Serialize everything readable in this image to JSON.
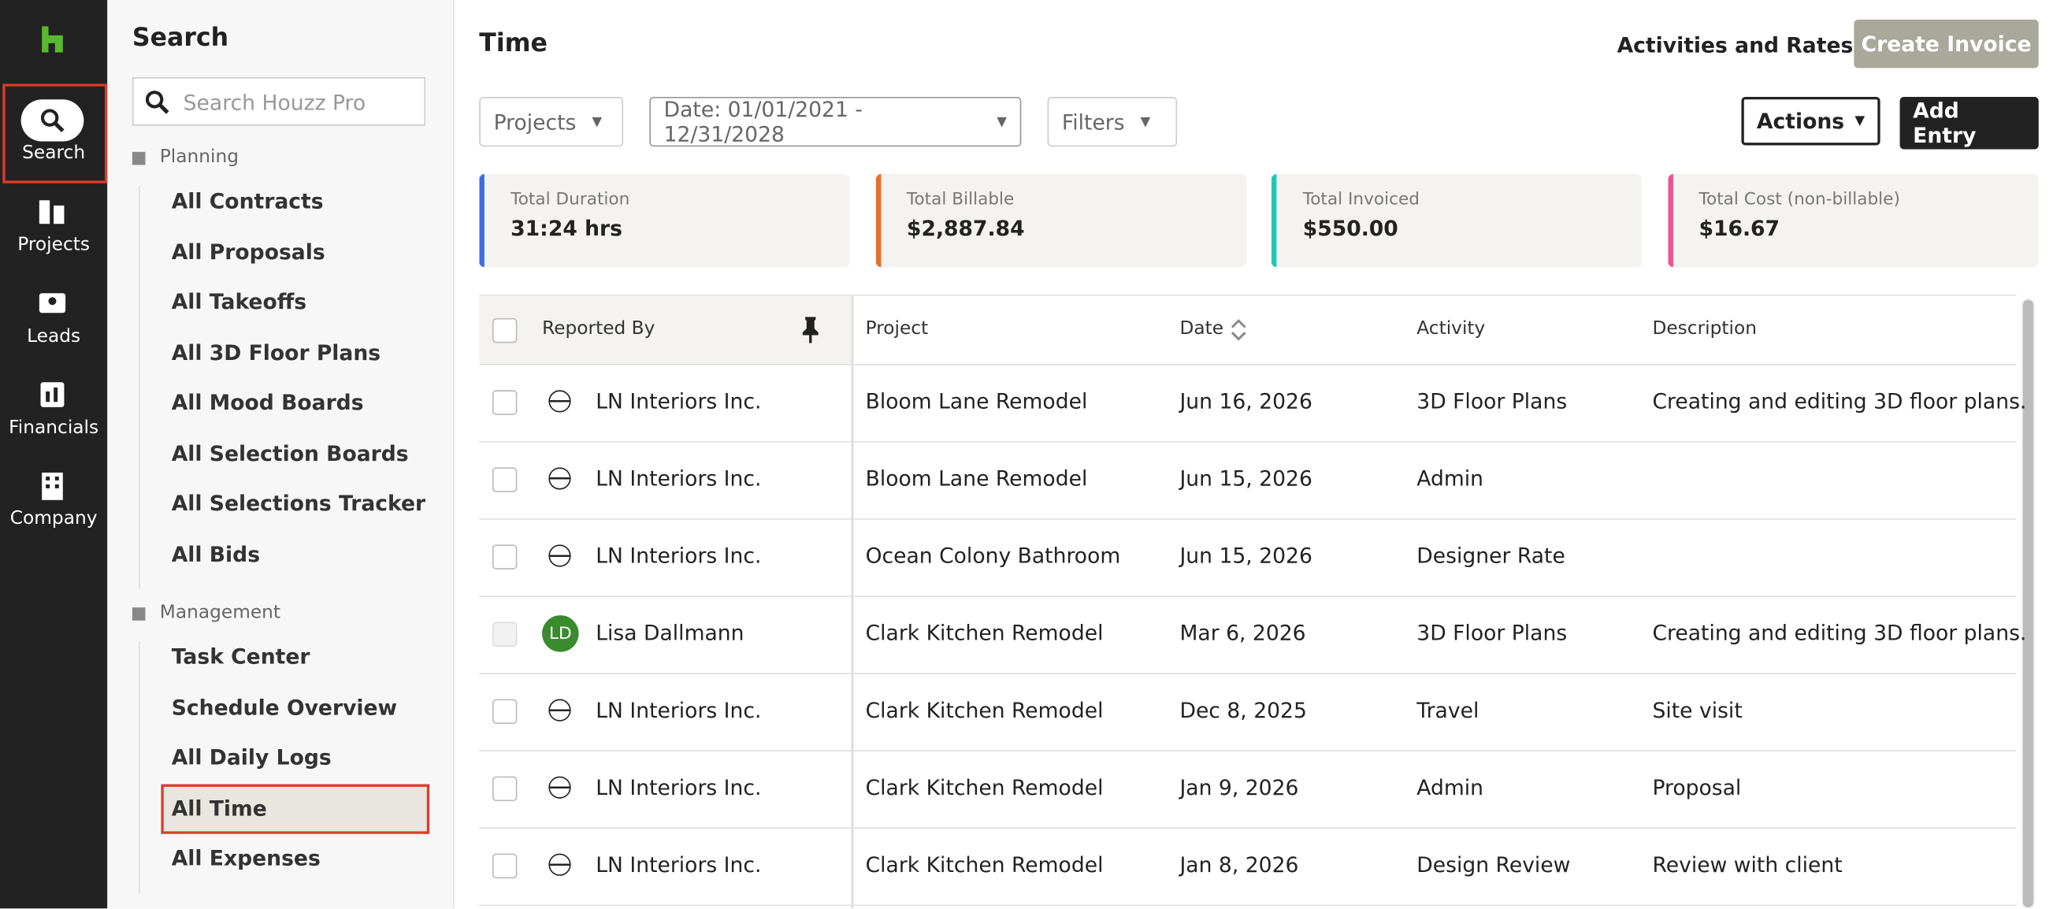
{
  "nav": {
    "items": [
      "Search",
      "Projects",
      "Leads",
      "Financials",
      "Company"
    ]
  },
  "panel": {
    "title": "Search",
    "search_placeholder": "Search Houzz Pro",
    "sections": [
      {
        "label": "Planning",
        "items": [
          "All Contracts",
          "All Proposals",
          "All Takeoffs",
          "All 3D Floor Plans",
          "All Mood Boards",
          "All Selection Boards",
          "All Selections Tracker",
          "All Bids"
        ]
      },
      {
        "label": "Management",
        "items": [
          "Task Center",
          "Schedule Overview",
          "All Daily Logs",
          "All Time",
          "All Expenses"
        ]
      }
    ]
  },
  "header": {
    "title": "Time",
    "link": "Activities and Rates",
    "create_invoice": "Create Invoice"
  },
  "toolbar": {
    "projects": "Projects",
    "date": "Date: 01/01/2021 - 12/31/2028",
    "filters": "Filters",
    "actions": "Actions",
    "add_entry": "Add Entry"
  },
  "summary": [
    {
      "label": "Total Duration",
      "value": "31:24 hrs"
    },
    {
      "label": "Total Billable",
      "value": "$2,887.84"
    },
    {
      "label": "Total Invoiced",
      "value": "$550.00"
    },
    {
      "label": "Total Cost (non-billable)",
      "value": "$16.67"
    }
  ],
  "table": {
    "columns": [
      "Reported By",
      "Project",
      "Date",
      "Activity",
      "Description"
    ],
    "rows": [
      {
        "reporter": "LN Interiors Inc.",
        "project": "Bloom Lane Remodel",
        "date": "Jun 16, 2026",
        "activity": "3D Floor Plans",
        "description": "Creating and editing 3D floor plans."
      },
      {
        "reporter": "LN Interiors Inc.",
        "project": "Bloom Lane Remodel",
        "date": "Jun 15, 2026",
        "activity": "Admin"
      },
      {
        "reporter": "LN Interiors Inc.",
        "project": "Ocean Colony Bathroom",
        "date": "Jun 15, 2026",
        "activity": "Designer Rate"
      },
      {
        "avatar": "LD",
        "reporter": "Lisa Dallmann",
        "project": "Clark Kitchen Remodel",
        "date": "Mar 6, 2026",
        "activity": "3D Floor Plans",
        "description": "Creating and editing 3D floor plans."
      },
      {
        "reporter": "LN Interiors Inc.",
        "project": "Clark Kitchen Remodel",
        "date": "Dec 8, 2025",
        "activity": "Travel",
        "description": "Site visit"
      },
      {
        "reporter": "LN Interiors Inc.",
        "project": "Clark Kitchen Remodel",
        "date": "Jan 9, 2026",
        "activity": "Admin",
        "description": "Proposal"
      },
      {
        "reporter": "LN Interiors Inc.",
        "project": "Clark Kitchen Remodel",
        "date": "Jan 8, 2026",
        "activity": "Design Review",
        "description": "Review with client"
      }
    ]
  }
}
